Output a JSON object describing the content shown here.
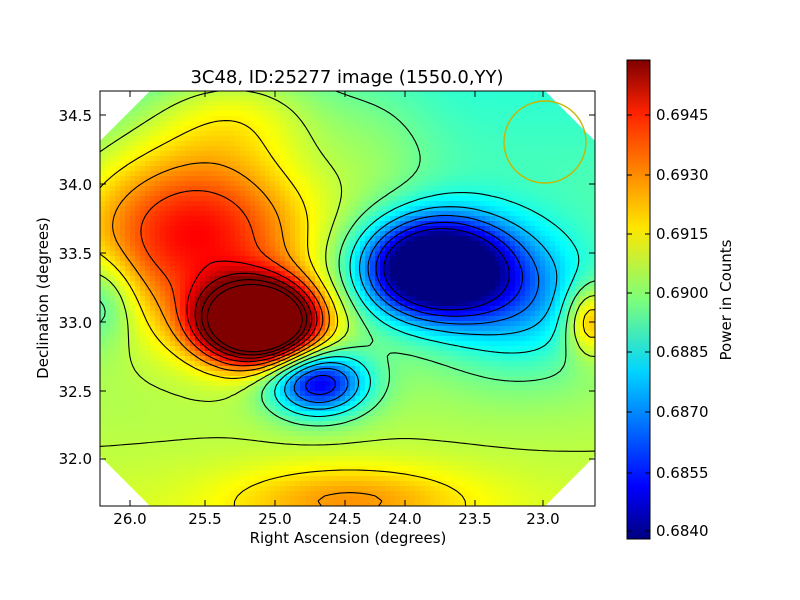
{
  "chart_data": {
    "type": "heatmap",
    "title": "3C48, ID:25277 image (1550.0,YY)",
    "xlabel": "Right Ascension (degrees)",
    "ylabel": "Declination (degrees)",
    "x_axis_inverted": true,
    "xlim": [
      26.22,
      22.63
    ],
    "ylim": [
      31.65,
      34.67
    ],
    "x_ticks": [
      "26.0",
      "25.5",
      "25.0",
      "24.5",
      "24.0",
      "23.5",
      "23.0"
    ],
    "y_ticks": [
      "32.0",
      "32.5",
      "33.0",
      "33.5",
      "34.0",
      "34.5"
    ],
    "colormap": "jet",
    "colorbar": {
      "label": "Power in Counts",
      "range": [
        0.6838,
        0.6959
      ],
      "ticks": [
        "0.6840",
        "0.6855",
        "0.6870",
        "0.6885",
        "0.6900",
        "0.6915",
        "0.6930",
        "0.6945"
      ]
    },
    "contours": true,
    "features": [
      {
        "label": "maximum",
        "ra": 25.05,
        "dec": 32.97,
        "value": 0.6955
      },
      {
        "label": "minimum",
        "ra": 23.78,
        "dec": 33.37,
        "value": 0.6839
      },
      {
        "label": "secondary minimum",
        "ra": 24.6,
        "dec": 32.6,
        "value": 0.6862
      }
    ],
    "beam": {
      "ra": 23.0,
      "dec": 34.3,
      "color": "#c8b400"
    }
  }
}
